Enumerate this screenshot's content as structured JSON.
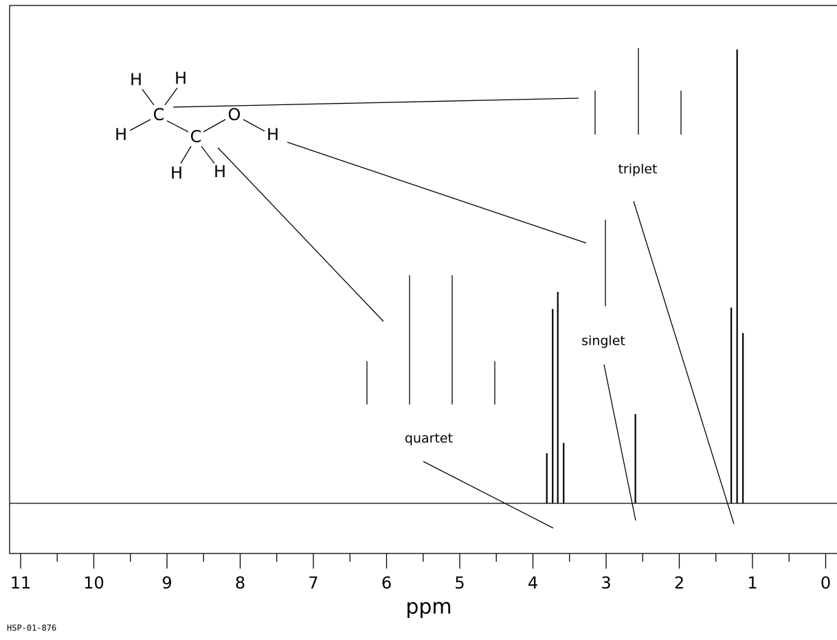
{
  "chart_data": {
    "type": "stick",
    "x_label": "ppm",
    "code": "HSP-01-876",
    "xlim": [
      11,
      0
    ],
    "ylim": [
      -73,
      725
    ],
    "xticks": [
      11,
      10,
      9,
      8,
      7,
      6,
      5,
      4,
      3,
      2,
      1,
      0
    ],
    "xminorticks": [
      10.5,
      9.5,
      8.5,
      7.5,
      6.5,
      5.5,
      4.5,
      3.5,
      2.5,
      1.5,
      0.5
    ],
    "x": [
      3.81,
      3.73,
      3.66,
      3.58,
      2.6,
      1.29,
      1.21,
      1.13
    ],
    "values": [
      73,
      283,
      308,
      88,
      130,
      285,
      661,
      248
    ],
    "color": "#000000",
    "annotations": [
      "triplet",
      "singlet",
      "quartet"
    ],
    "molecule": {
      "atoms": [
        "H",
        "H",
        "C",
        "H",
        "C",
        "O",
        "H",
        "H",
        "H"
      ]
    }
  }
}
